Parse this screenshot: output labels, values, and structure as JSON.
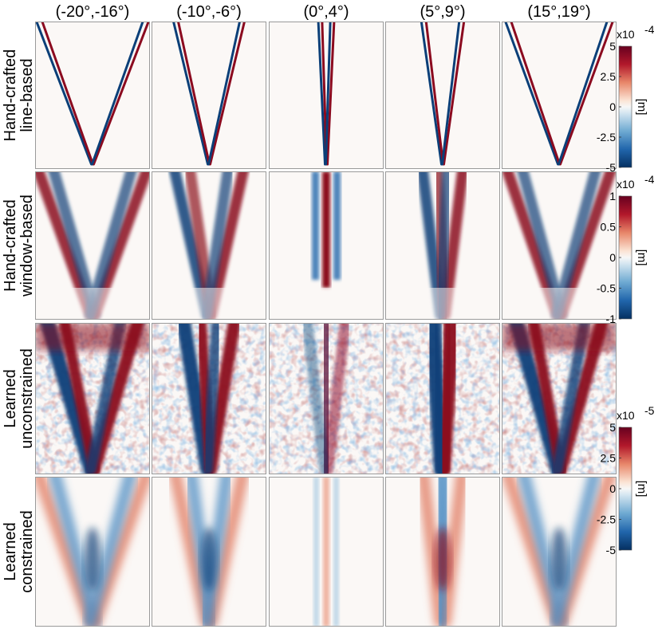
{
  "columns": [
    "(-20°,-16°)",
    "(-10°,-6°)",
    "(0°,4°)",
    "(5°,9°)",
    "(15°,19°)"
  ],
  "rows": [
    {
      "line1": "Hand-crafted",
      "line2": "line-based",
      "style": "line"
    },
    {
      "line1": "Hand-crafted",
      "line2": "window-based",
      "style": "window"
    },
    {
      "line1": "Learned",
      "line2": "unconstrained",
      "style": "noisy"
    },
    {
      "line1": "Learned",
      "line2": "constrained",
      "style": "smooth"
    }
  ],
  "colorbars": [
    {
      "exponent_base": "x10",
      "exponent": "-4",
      "unit": "[m]",
      "ticks": [
        "5",
        "2.5",
        "0",
        "-2.5",
        "-5"
      ],
      "span_rows": [
        0
      ]
    },
    {
      "exponent_base": "x10",
      "exponent": "-4",
      "unit": "[m]",
      "ticks": [
        "1",
        "0.5",
        "0",
        "-0.5",
        "-1"
      ],
      "span_rows": [
        1
      ]
    },
    {
      "exponent_base": "x10",
      "exponent": "-5",
      "unit": "[m]",
      "ticks": [
        "5",
        "2.5",
        "0",
        "-2.5",
        "-5"
      ],
      "span_rows": [
        2,
        3
      ]
    }
  ],
  "colors": {
    "positive": "#8b0a1f",
    "negative": "#0b3f78",
    "zero": "#f7f7f7",
    "frame": "#9a9a9a"
  }
}
